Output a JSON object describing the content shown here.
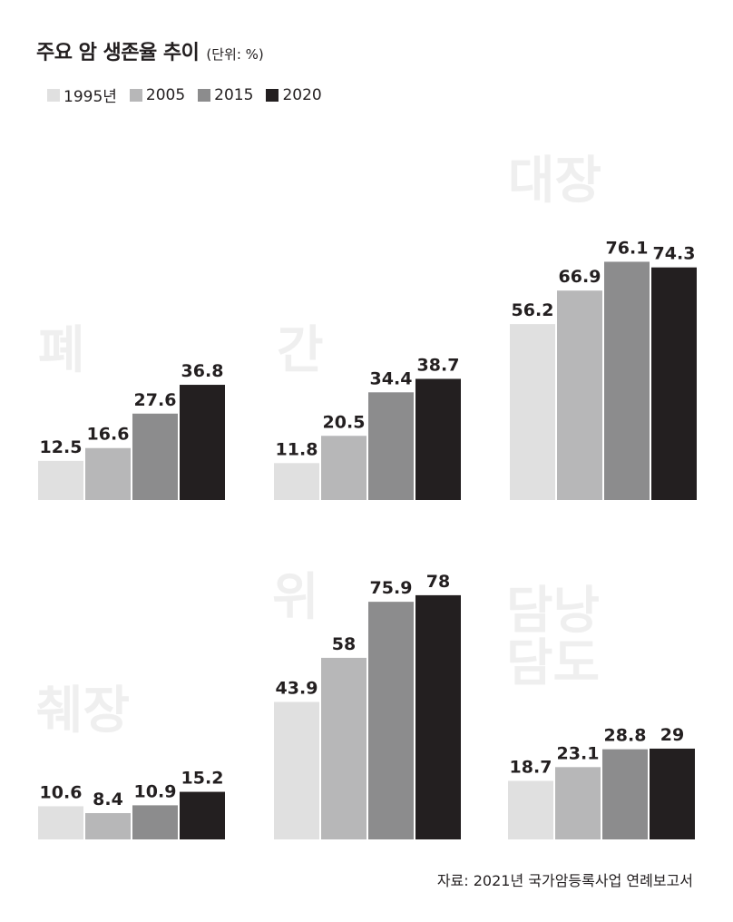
{
  "title": "주요 암 생존율 추이",
  "unit": "(단위: %)",
  "source": "자료: 2021년 국가암등록사업 연례보고서",
  "colors": {
    "1995년": "#e0e0e0",
    "2005": "#b7b7b8",
    "2015": "#8c8c8d",
    "2020": "#231f20",
    "panel_label": "#efefef"
  },
  "chart_data": {
    "type": "bar",
    "ylim": [
      0,
      80
    ],
    "series_names": [
      "1995년",
      "2005",
      "2015",
      "2020"
    ],
    "panels": [
      {
        "label": [
          "폐"
        ],
        "values": [
          12.5,
          16.6,
          27.6,
          36.8
        ],
        "value_labels": [
          "12.5",
          "16.6",
          "27.6",
          "36.8"
        ]
      },
      {
        "label": [
          "간"
        ],
        "values": [
          11.8,
          20.5,
          34.4,
          38.7
        ],
        "value_labels": [
          "11.8",
          "20.5",
          "34.4",
          "38.7"
        ]
      },
      {
        "label": [
          "대장"
        ],
        "values": [
          56.2,
          66.9,
          76.1,
          74.3
        ],
        "value_labels": [
          "56.2",
          "66.9",
          "76.1",
          "74.3"
        ]
      },
      {
        "label": [
          "췌장"
        ],
        "values": [
          10.6,
          8.4,
          10.9,
          15.2
        ],
        "value_labels": [
          "10.6",
          "8.4",
          "10.9",
          "15.2"
        ]
      },
      {
        "label": [
          "위"
        ],
        "values": [
          43.9,
          58,
          75.9,
          78
        ],
        "value_labels": [
          "43.9",
          "58",
          "75.9",
          "78"
        ]
      },
      {
        "label": [
          "담낭",
          "담도"
        ],
        "values": [
          18.7,
          23.1,
          28.8,
          29
        ],
        "value_labels": [
          "18.7",
          "23.1",
          "28.8",
          "29"
        ]
      }
    ]
  }
}
